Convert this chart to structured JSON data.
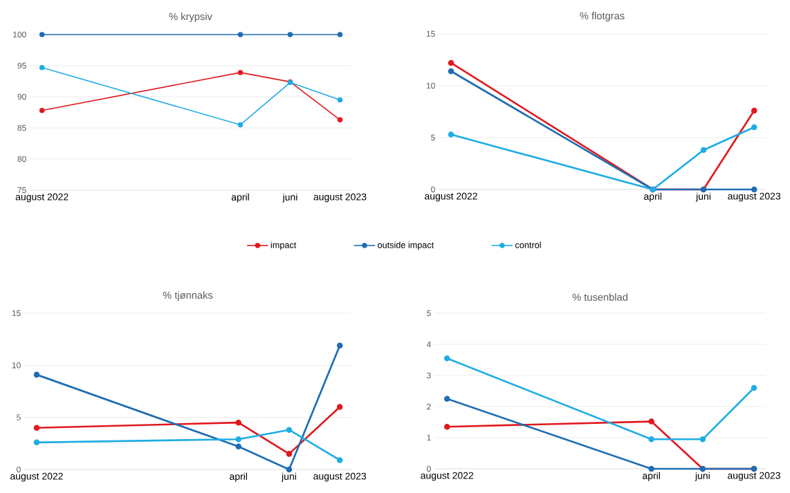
{
  "chart_data": [
    {
      "type": "line",
      "title": "% krypsiv",
      "x": [
        "2022-08",
        "2023-04",
        "2023-06",
        "2023-08"
      ],
      "xlim": [
        "2022-07-17",
        "2023-08-15"
      ],
      "xticks": [
        {
          "value": "2022-08",
          "label": "august 2022"
        },
        {
          "value": "2023-04",
          "label": "april"
        },
        {
          "value": "2023-06",
          "label": "juni"
        },
        {
          "value": "2023-08",
          "label": "august 2023"
        }
      ],
      "ylim": [
        75,
        100
      ],
      "yticks": [
        75,
        80,
        85,
        90,
        95,
        100
      ],
      "grid": "y",
      "marker": "circle",
      "line_style": "solid",
      "legend": "bottom",
      "series": [
        {
          "name": "impact",
          "color": "#e0191e",
          "values": [
            87.8,
            93.9,
            92.4,
            86.3
          ]
        },
        {
          "name": "outside impact",
          "color": "#1f6db3",
          "values": [
            100,
            100,
            100,
            100
          ]
        },
        {
          "name": "control",
          "color": "#1fade4",
          "values": [
            94.7,
            85.5,
            92.3,
            89.5
          ]
        }
      ]
    },
    {
      "type": "line",
      "title": "% flotgras",
      "x": [
        "2022-08",
        "2023-04",
        "2023-06",
        "2023-08"
      ],
      "xlim": [
        "2022-07-17",
        "2023-08-15"
      ],
      "xticks": [
        {
          "value": "2022-08",
          "label": "august 2022"
        },
        {
          "value": "2023-04",
          "label": "april"
        },
        {
          "value": "2023-06",
          "label": "juni"
        },
        {
          "value": "2023-08",
          "label": "august 2023"
        }
      ],
      "ylim": [
        0,
        15
      ],
      "yticks": [
        0,
        5,
        10,
        15
      ],
      "grid": "y",
      "marker": "circle",
      "line_style": "solid",
      "series": [
        {
          "color": "#e0191e",
          "values": [
            12.2,
            0,
            0,
            7.6
          ]
        },
        {
          "color": "#1f6db3",
          "values": [
            11.4,
            0,
            0,
            0
          ]
        },
        {
          "color": "#1fade4",
          "values": [
            5.3,
            0,
            3.8,
            6.0
          ]
        }
      ]
    },
    {
      "type": "line",
      "title": "% tjønnaks",
      "x": [
        "2022-08",
        "2023-04",
        "2023-06",
        "2023-08"
      ],
      "xlim": [
        "2022-07-17",
        "2023-08-15"
      ],
      "xticks": [
        {
          "value": "2022-08",
          "label": "august 2022"
        },
        {
          "value": "2023-04",
          "label": "april"
        },
        {
          "value": "2023-06",
          "label": "juni"
        },
        {
          "value": "2023-08",
          "label": "august 2023"
        }
      ],
      "ylim": [
        0,
        15
      ],
      "yticks": [
        0,
        5,
        10,
        15
      ],
      "grid": "y",
      "marker": "circle",
      "line_style": "solid",
      "series": [
        {
          "color": "#e0191e",
          "values": [
            4.0,
            4.5,
            1.5,
            6.0
          ]
        },
        {
          "color": "#1f6db3",
          "values": [
            9.1,
            2.2,
            0,
            11.9
          ]
        },
        {
          "color": "#1fade4",
          "values": [
            2.6,
            2.9,
            3.8,
            0.9
          ]
        }
      ]
    },
    {
      "type": "line",
      "title": "% tusenblad",
      "x": [
        "2022-08",
        "2023-04",
        "2023-06",
        "2023-08"
      ],
      "xlim": [
        "2022-07-17",
        "2023-08-15"
      ],
      "xticks": [
        {
          "value": "2022-08",
          "label": "august 2022"
        },
        {
          "value": "2023-04",
          "label": "april"
        },
        {
          "value": "2023-06",
          "label": "juni"
        },
        {
          "value": "2023-08",
          "label": "august 2023"
        }
      ],
      "ylim": [
        0,
        5
      ],
      "yticks": [
        0,
        1,
        2,
        3,
        4,
        5
      ],
      "grid": "y",
      "marker": "circle",
      "line_style": "solid",
      "series": [
        {
          "color": "#e0191e",
          "values": [
            1.35,
            1.52,
            0,
            0
          ]
        },
        {
          "color": "#1f6db3",
          "values": [
            2.25,
            0,
            0,
            0
          ]
        },
        {
          "color": "#1fade4",
          "values": [
            3.55,
            0.95,
            0.95,
            2.6
          ]
        }
      ]
    }
  ]
}
